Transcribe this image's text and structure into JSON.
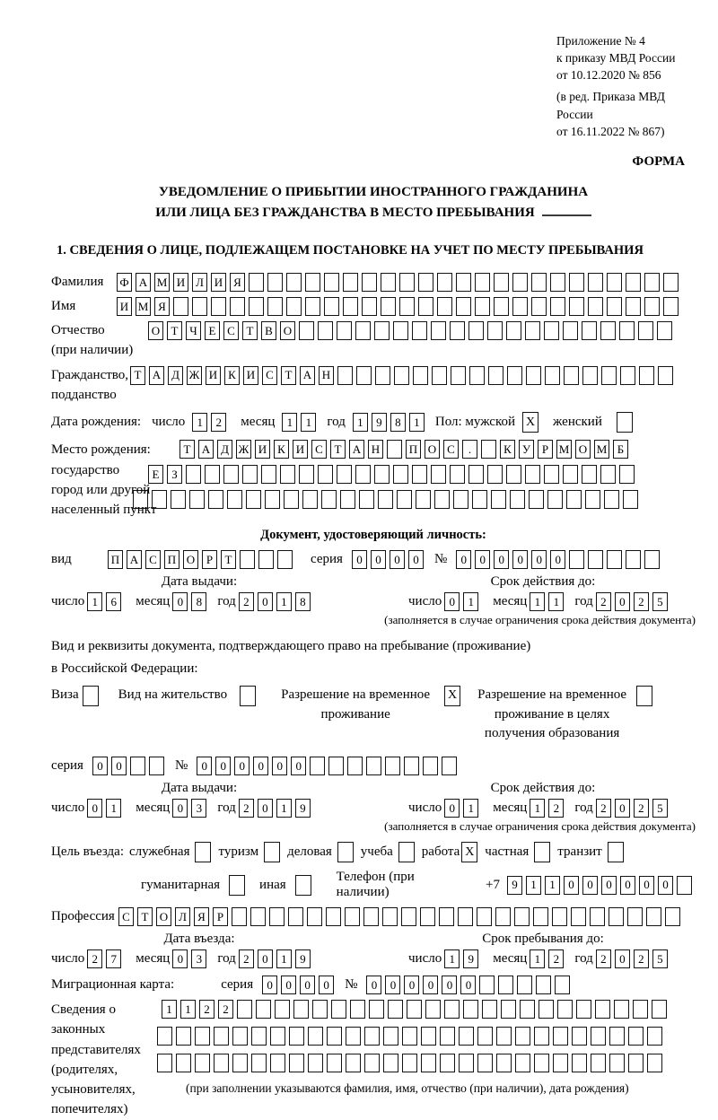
{
  "header": {
    "appendix": [
      "Приложение № 4",
      "к приказу МВД России",
      "от 10.12.2020 № 856"
    ],
    "revision": [
      "(в ред. Приказа МВД России",
      "от 16.11.2022 № 867)"
    ],
    "form_label": "ФОРМА"
  },
  "title": {
    "line1": "УВЕДОМЛЕНИЕ О ПРИБЫТИИ ИНОСТРАННОГО ГРАЖДАНИНА",
    "line2": "ИЛИ ЛИЦА БЕЗ ГРАЖДАНСТВА В МЕСТО ПРЕБЫВАНИЯ"
  },
  "date_labels": {
    "day": "число",
    "month": "месяц",
    "year": "год"
  },
  "section1": {
    "heading": "1. СВЕДЕНИЯ О ЛИЦЕ, ПОДЛЕЖАЩЕМ ПОСТАНОВКЕ НА УЧЕТ ПО МЕСТУ ПРЕБЫВАНИЯ",
    "surname": {
      "label": "Фамилия",
      "cells": {
        "count": 30,
        "chars": "ФАМИЛИЯ"
      }
    },
    "name": {
      "label": "Имя",
      "cells": {
        "count": 30,
        "chars": "ИМЯ"
      }
    },
    "patronymic": {
      "label1": "Отчество",
      "label2": "(при наличии)",
      "cells": {
        "count": 28,
        "chars": "ОТЧЕСТВО"
      }
    },
    "citizenship": {
      "label1": "Гражданство,",
      "label2": "подданство",
      "cells": {
        "count": 29,
        "chars": "ТАДЖИКИСТАН"
      }
    },
    "birthdate": {
      "label": "Дата рождения:",
      "day": {
        "count": 2,
        "chars": "12"
      },
      "month": {
        "count": 2,
        "chars": "11"
      },
      "year": {
        "count": 4,
        "chars": "1981"
      },
      "sex_label": "Пол: мужской",
      "male_checked": true,
      "female_label": "женский",
      "female_checked": false
    },
    "birthplace": {
      "labels": [
        "Место рождения:",
        "государство",
        "город или другой",
        "населенный пункт"
      ],
      "row1": {
        "count": 24,
        "chars": "ТАДЖИКИСТАН ПОС. КУРМОМБ"
      },
      "row2": {
        "count": 26,
        "chars": "ЕЗ"
      },
      "row3": {
        "count": 27,
        "chars": ""
      }
    },
    "identity_doc": {
      "heading": "Документ, удостоверяющий личность:",
      "type_label": "вид",
      "type": {
        "count": 10,
        "chars": "ПАСПОРТ"
      },
      "series_label": "серия",
      "series": {
        "count": 4,
        "chars": "0000"
      },
      "number_label": "№",
      "number": {
        "count": 11,
        "chars": "000000"
      },
      "issue": {
        "heading": "Дата выдачи:",
        "day": {
          "count": 2,
          "chars": "16"
        },
        "month": {
          "count": 2,
          "chars": "08"
        },
        "year": {
          "count": 4,
          "chars": "2018"
        }
      },
      "valid": {
        "heading": "Срок действия до:",
        "day": {
          "count": 2,
          "chars": "01"
        },
        "month": {
          "count": 2,
          "chars": "11"
        },
        "year": {
          "count": 4,
          "chars": "2025"
        }
      },
      "note": "(заполняется в случае ограничения срока действия документа)"
    },
    "residence_doc": {
      "intro1": "Вид и реквизиты документа, подтверждающего право на пребывание (проживание)",
      "intro2": "в Российской Федерации:",
      "options": [
        {
          "label": "Виза",
          "checked": false
        },
        {
          "label": "Вид на жительство",
          "checked": false
        },
        {
          "label": "Разрешение на временное проживание",
          "checked": true
        },
        {
          "label": "Разрешение на временное проживание в целях получения образования",
          "checked": false
        }
      ],
      "series_label": "серия",
      "series": {
        "count": 4,
        "chars": "00"
      },
      "number_label": "№",
      "number": {
        "count": 14,
        "chars": "000000"
      },
      "issue": {
        "heading": "Дата выдачи:",
        "day": {
          "count": 2,
          "chars": "01"
        },
        "month": {
          "count": 2,
          "chars": "03"
        },
        "year": {
          "count": 4,
          "chars": "2019"
        }
      },
      "valid": {
        "heading": "Срок действия до:",
        "day": {
          "count": 2,
          "chars": "01"
        },
        "month": {
          "count": 2,
          "chars": "12"
        },
        "year": {
          "count": 4,
          "chars": "2025"
        }
      },
      "note": "(заполняется в случае ограничения срока действия документа)"
    },
    "purpose": {
      "label": "Цель въезда:",
      "options": [
        {
          "label": "служебная",
          "checked": false
        },
        {
          "label": "туризм",
          "checked": false
        },
        {
          "label": "деловая",
          "checked": false
        },
        {
          "label": "учеба",
          "checked": false
        },
        {
          "label": "работа",
          "checked": true
        },
        {
          "label": "частная",
          "checked": false
        },
        {
          "label": "транзит",
          "checked": false
        }
      ],
      "options2": [
        {
          "label": "гуманитарная",
          "checked": false
        },
        {
          "label": "иная",
          "checked": false
        }
      ],
      "phone_label": "Телефон (при наличии)",
      "phone_prefix": "+7",
      "phone": {
        "count": 10,
        "chars": "911000000"
      }
    },
    "profession": {
      "label": "Профессия",
      "cells": {
        "count": 30,
        "chars": "СТОЛЯР"
      }
    },
    "entry": {
      "heading": "Дата въезда:",
      "day": {
        "count": 2,
        "chars": "27"
      },
      "month": {
        "count": 2,
        "chars": "03"
      },
      "year": {
        "count": 4,
        "chars": "2019"
      }
    },
    "stay": {
      "heading": "Срок пребывания до:",
      "day": {
        "count": 2,
        "chars": "19"
      },
      "month": {
        "count": 2,
        "chars": "12"
      },
      "year": {
        "count": 4,
        "chars": "2025"
      }
    },
    "migration_card": {
      "label": "Миграционная карта:",
      "series_label": "серия",
      "series": {
        "count": 4,
        "chars": "0000"
      },
      "number_label": "№",
      "number": {
        "count": 11,
        "chars": "000000"
      }
    },
    "representatives": {
      "labels": [
        "Сведения о",
        "законных",
        "представителях",
        "(родителях,",
        "усыновителях,",
        "попечителях)"
      ],
      "rows": [
        {
          "count": 27,
          "chars": "1122"
        },
        {
          "count": 27,
          "chars": ""
        },
        {
          "count": 27,
          "chars": ""
        }
      ],
      "note": "(при заполнении указываются фамилия, имя, отчество (при наличии), дата рождения)"
    }
  }
}
